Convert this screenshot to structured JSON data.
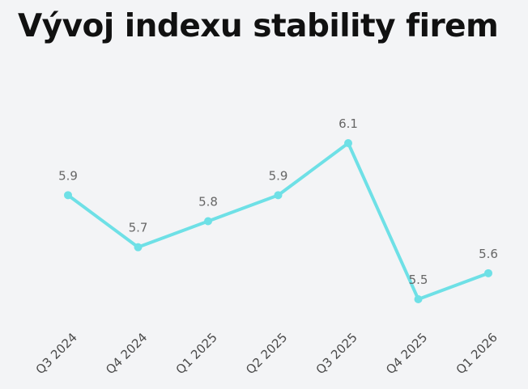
{
  "chart_data": {
    "type": "line",
    "title": "Vývoj indexu stability firem",
    "xlabel": "",
    "ylabel": "",
    "categories": [
      "Q3 2024",
      "Q4 2024",
      "Q1 2025",
      "Q2 2025",
      "Q3 2025",
      "Q4 2025",
      "Q1 2026"
    ],
    "series": [
      {
        "values": [
          5.9,
          5.7,
          5.8,
          5.9,
          6.1,
          5.5,
          5.6
        ]
      }
    ],
    "data_labels": [
      "5.9",
      "5.7",
      "5.8",
      "5.9",
      "6.1",
      "5.5",
      "5.6"
    ],
    "ylim": [
      5.5,
      6.1
    ],
    "grid": false,
    "legend": "none",
    "line_color": "#6ee0e6"
  }
}
